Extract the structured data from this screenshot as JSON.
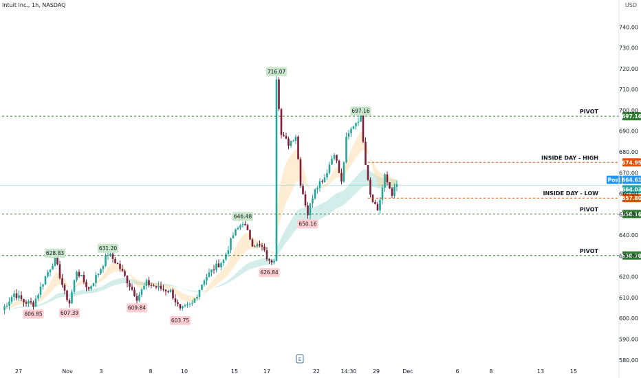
{
  "header": {
    "symbol_title": "Intuit Inc., 1h, NASDAQ",
    "currency": "USD"
  },
  "colors": {
    "up": "#26a69a",
    "down": "#7b1e3a",
    "pivot": "#2e7d32",
    "inside": "#e65100",
    "live": "#26a69a",
    "post": "#2196f3"
  },
  "events_icon": "earnings-icon",
  "events_label": "E",
  "chart_data": {
    "type": "candlestick",
    "ylim": [
      572,
      753
    ],
    "yticks": [
      580,
      590,
      600,
      610,
      620,
      630,
      640,
      650,
      660,
      670,
      680,
      690,
      700,
      710,
      720,
      730,
      740
    ],
    "xticks": [
      "27",
      "Nov",
      "3",
      "8",
      "10",
      "15",
      "17",
      "22",
      "14:30",
      "29",
      "Dec",
      "6",
      "8",
      "13",
      "15"
    ],
    "bars": 160,
    "path": [
      {
        "i": 0,
        "v": 604
      },
      {
        "i": 5,
        "v": 612
      },
      {
        "i": 9,
        "v": 608
      },
      {
        "i": 13,
        "v": 606.85
      },
      {
        "i": 18,
        "v": 620
      },
      {
        "i": 22,
        "v": 628.83
      },
      {
        "i": 26,
        "v": 612
      },
      {
        "i": 28,
        "v": 607.39
      },
      {
        "i": 31,
        "v": 623
      },
      {
        "i": 36,
        "v": 614
      },
      {
        "i": 41,
        "v": 624
      },
      {
        "i": 44,
        "v": 631.2
      },
      {
        "i": 48,
        "v": 626
      },
      {
        "i": 52,
        "v": 618
      },
      {
        "i": 56,
        "v": 609.84
      },
      {
        "i": 60,
        "v": 617
      },
      {
        "i": 64,
        "v": 615
      },
      {
        "i": 70,
        "v": 613
      },
      {
        "i": 74,
        "v": 603.75
      },
      {
        "i": 79,
        "v": 607
      },
      {
        "i": 84,
        "v": 619
      },
      {
        "i": 88,
        "v": 624
      },
      {
        "i": 92,
        "v": 628
      },
      {
        "i": 96,
        "v": 640
      },
      {
        "i": 100,
        "v": 646.48
      },
      {
        "i": 104,
        "v": 636
      },
      {
        "i": 108,
        "v": 634
      },
      {
        "i": 111,
        "v": 626.84
      },
      {
        "i": 113,
        "v": 629
      },
      {
        "i": 114,
        "v": 716.07
      },
      {
        "i": 116,
        "v": 688
      },
      {
        "i": 119,
        "v": 684
      },
      {
        "i": 122,
        "v": 688
      },
      {
        "i": 124,
        "v": 665
      },
      {
        "i": 127,
        "v": 650.16
      },
      {
        "i": 130,
        "v": 663
      },
      {
        "i": 134,
        "v": 668
      },
      {
        "i": 138,
        "v": 680
      },
      {
        "i": 141,
        "v": 665
      },
      {
        "i": 143,
        "v": 686
      },
      {
        "i": 146,
        "v": 693
      },
      {
        "i": 149,
        "v": 697.16
      },
      {
        "i": 151,
        "v": 675
      },
      {
        "i": 153,
        "v": 660
      },
      {
        "i": 156,
        "v": 652
      },
      {
        "i": 159,
        "v": 668
      },
      {
        "i": 162,
        "v": 660
      },
      {
        "i": 164,
        "v": 664.03
      }
    ],
    "swing_labels": [
      {
        "i": 22,
        "value": "628.83",
        "kind": "high"
      },
      {
        "i": 44,
        "value": "631.20",
        "kind": "high"
      },
      {
        "i": 100,
        "value": "646.48",
        "kind": "high"
      },
      {
        "i": 114,
        "value": "716.07",
        "kind": "high"
      },
      {
        "i": 149,
        "value": "697.16",
        "kind": "high"
      },
      {
        "i": 13,
        "value": "606.85",
        "kind": "low"
      },
      {
        "i": 28,
        "value": "607.39",
        "kind": "low"
      },
      {
        "i": 56,
        "value": "609.84",
        "kind": "low"
      },
      {
        "i": 74,
        "value": "603.75",
        "kind": "low"
      },
      {
        "i": 111,
        "value": "626.84",
        "kind": "low"
      },
      {
        "i": 127,
        "value": "650.16",
        "kind": "low"
      }
    ],
    "levels": [
      {
        "name": "PIVOT",
        "value": 697.16,
        "label": "697.16",
        "kind": "pivot",
        "from": 0
      },
      {
        "name": "INSIDE DAY - HIGH",
        "value": 674.95,
        "label": "674.95",
        "kind": "inside",
        "from": 152
      },
      {
        "name": "INSIDE DAY - LOW",
        "value": 657.8,
        "label": "657.80",
        "kind": "inside",
        "from": 152
      },
      {
        "name": "PIVOT",
        "value": 650.16,
        "label": "650.16",
        "kind": "pivot",
        "from": 0
      },
      {
        "name": "PIVOT",
        "value": 630.2,
        "label": "630.20",
        "kind": "pivot",
        "from": 0
      }
    ],
    "price_tags": [
      {
        "tag": "Post",
        "value": 664.61,
        "label": "664.61",
        "kind": "post"
      },
      {
        "tag": "",
        "value": 664.03,
        "label": "664.03",
        "kind": "live"
      }
    ]
  }
}
